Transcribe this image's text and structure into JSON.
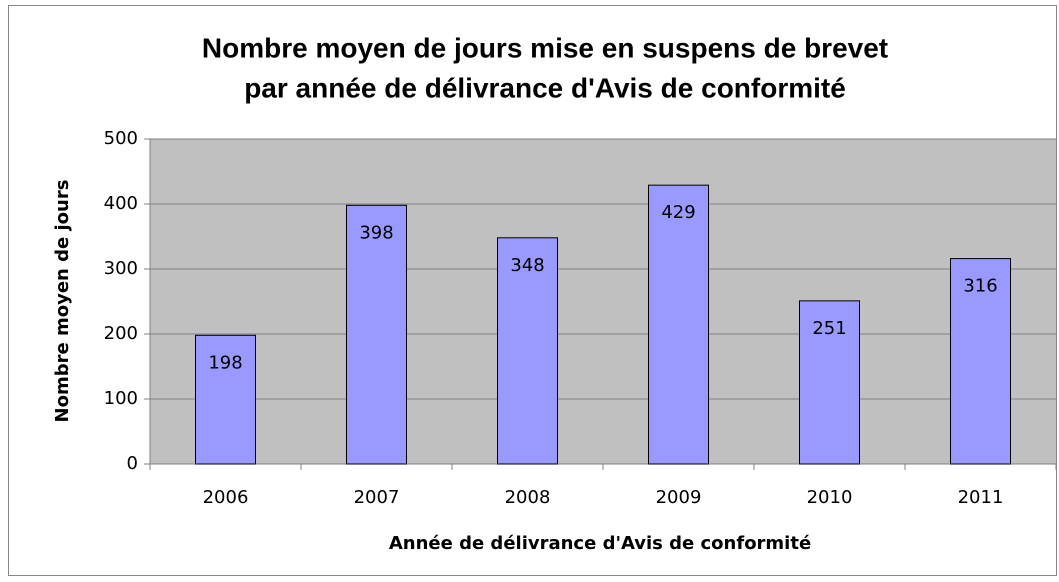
{
  "chart_data": {
    "type": "bar",
    "title": [
      "Nombre moyen de jours mise en suspens de brevet",
      "par année de délivrance d'Avis de conformité"
    ],
    "x_label": "Année de délivrance d'Avis de conformité",
    "y_label": "Nombre moyen de jours",
    "categories": [
      "2006",
      "2007",
      "2008",
      "2009",
      "2010",
      "2011"
    ],
    "values": [
      198,
      398,
      348,
      429,
      251,
      316
    ],
    "color": "#9999ff",
    "ylim": [
      0,
      500
    ],
    "yticks": [
      0,
      100,
      200,
      300,
      400,
      500
    ],
    "grid": true
  }
}
